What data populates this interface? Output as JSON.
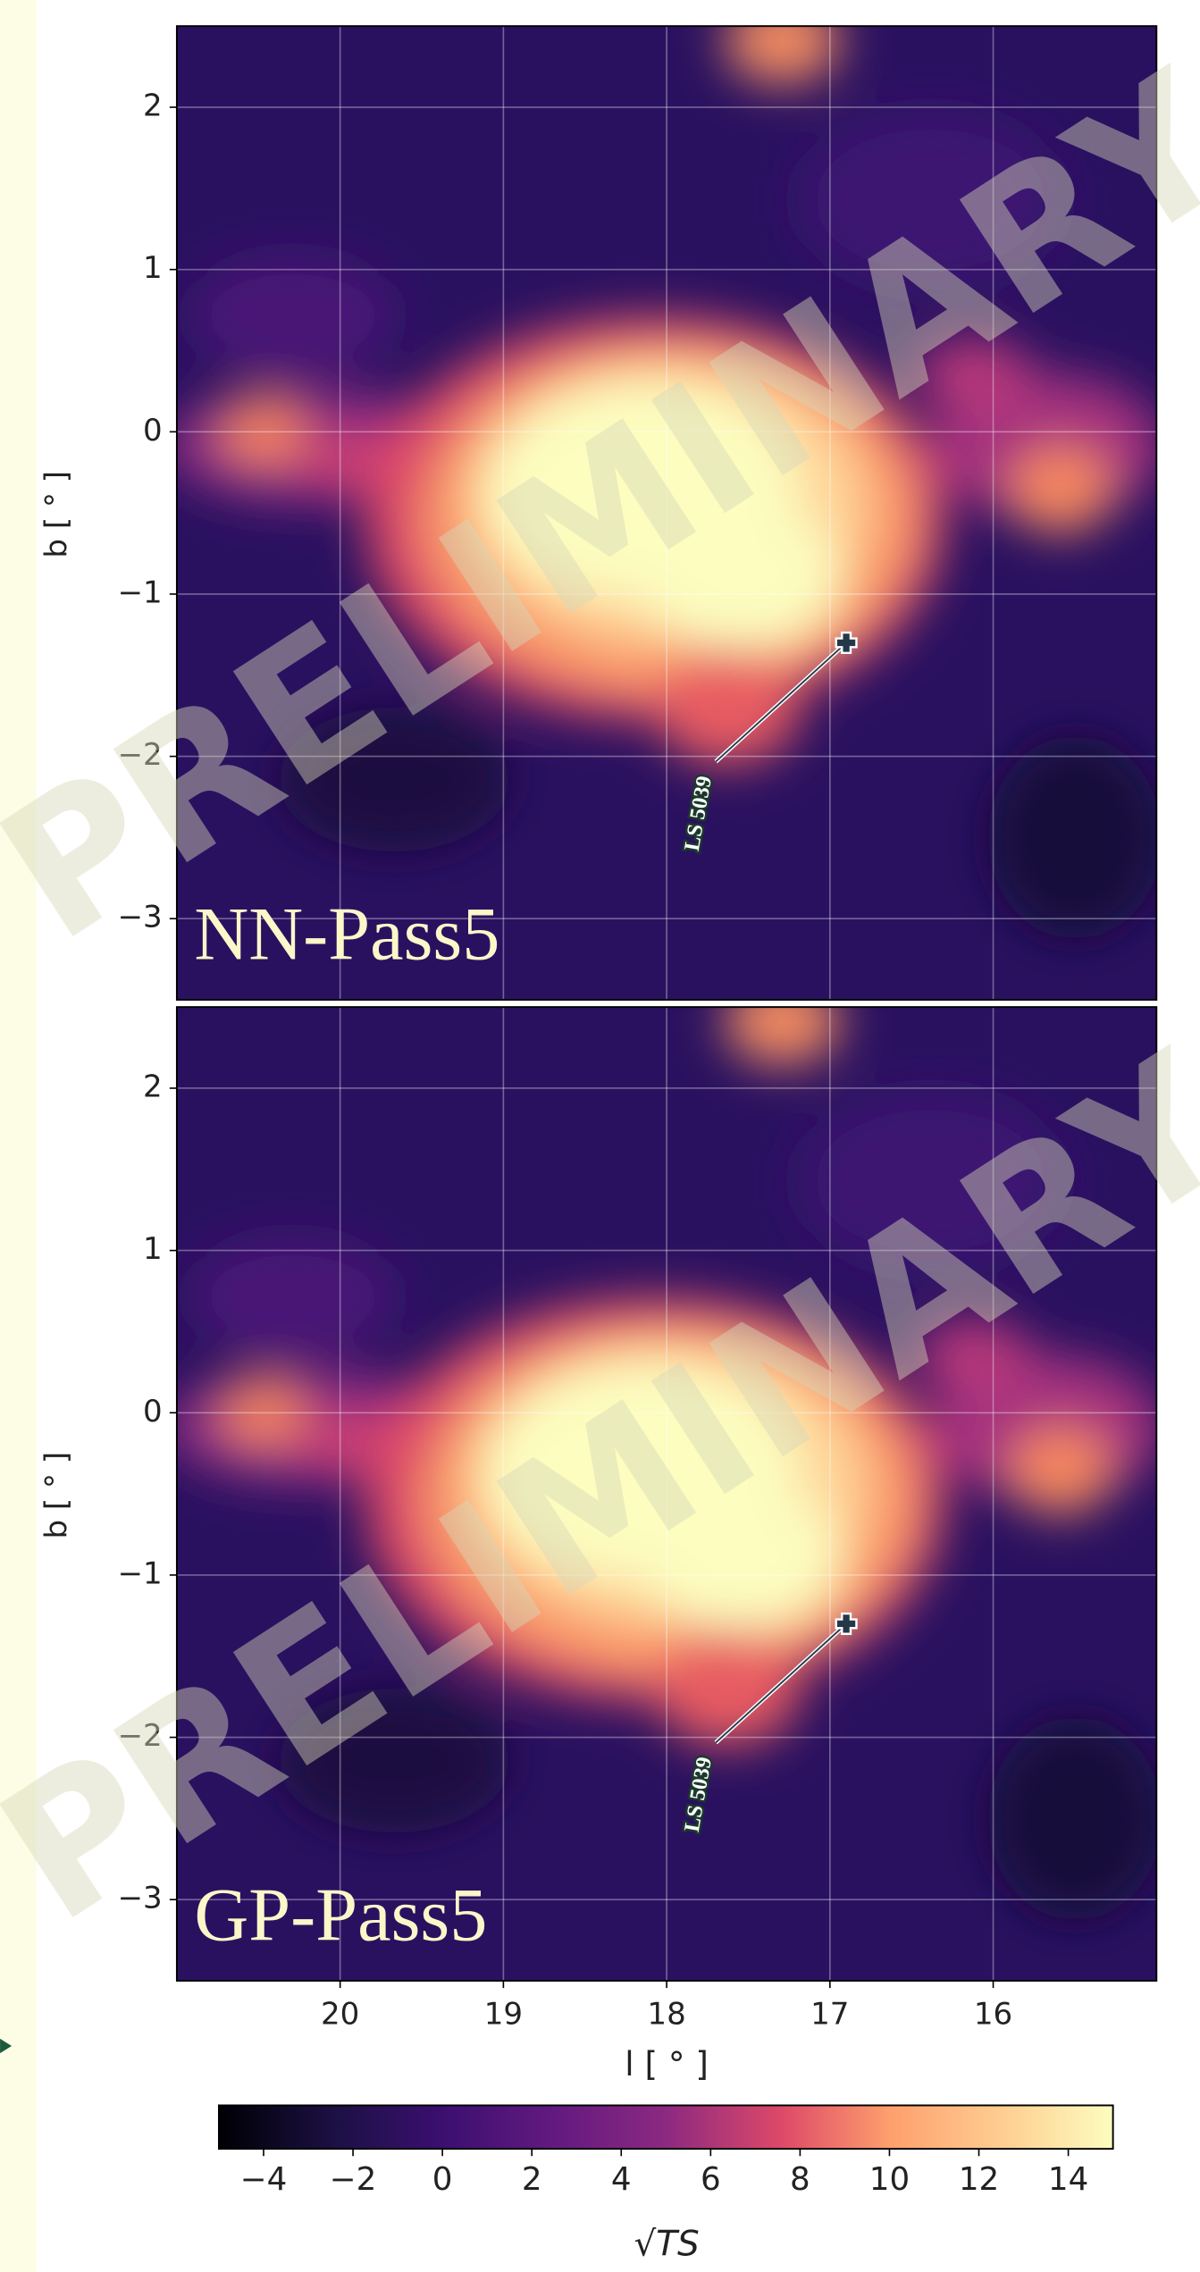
{
  "chart_data": {
    "type": "heatmap",
    "panels": [
      {
        "label": "NN-Pass5"
      },
      {
        "label": "GP-Pass5"
      }
    ],
    "xlabel": "l [ ° ]",
    "ylabel": "b [ ° ]",
    "xlim": [
      21,
      15
    ],
    "xticks": [
      20,
      19,
      18,
      17,
      16
    ],
    "ylim": [
      -3.5,
      2.5
    ],
    "yticks": [
      2,
      1,
      0,
      {
        "value": -1,
        "label": "−1"
      },
      {
        "value": -2,
        "label": "−2"
      },
      {
        "value": -3,
        "label": "−3"
      }
    ],
    "grid": true,
    "watermark": "PRELIMINARY",
    "annotation": {
      "text": "LS 5039",
      "l": 16.9,
      "b": -1.3
    },
    "colorbar": {
      "label": "√TS",
      "colormap": "magma",
      "lim": [
        -5,
        15
      ],
      "ticks": [
        {
          "value": -4,
          "label": "−4"
        },
        {
          "value": -2,
          "label": "−2"
        },
        0,
        2,
        4,
        6,
        8,
        10,
        12,
        14
      ]
    }
  }
}
